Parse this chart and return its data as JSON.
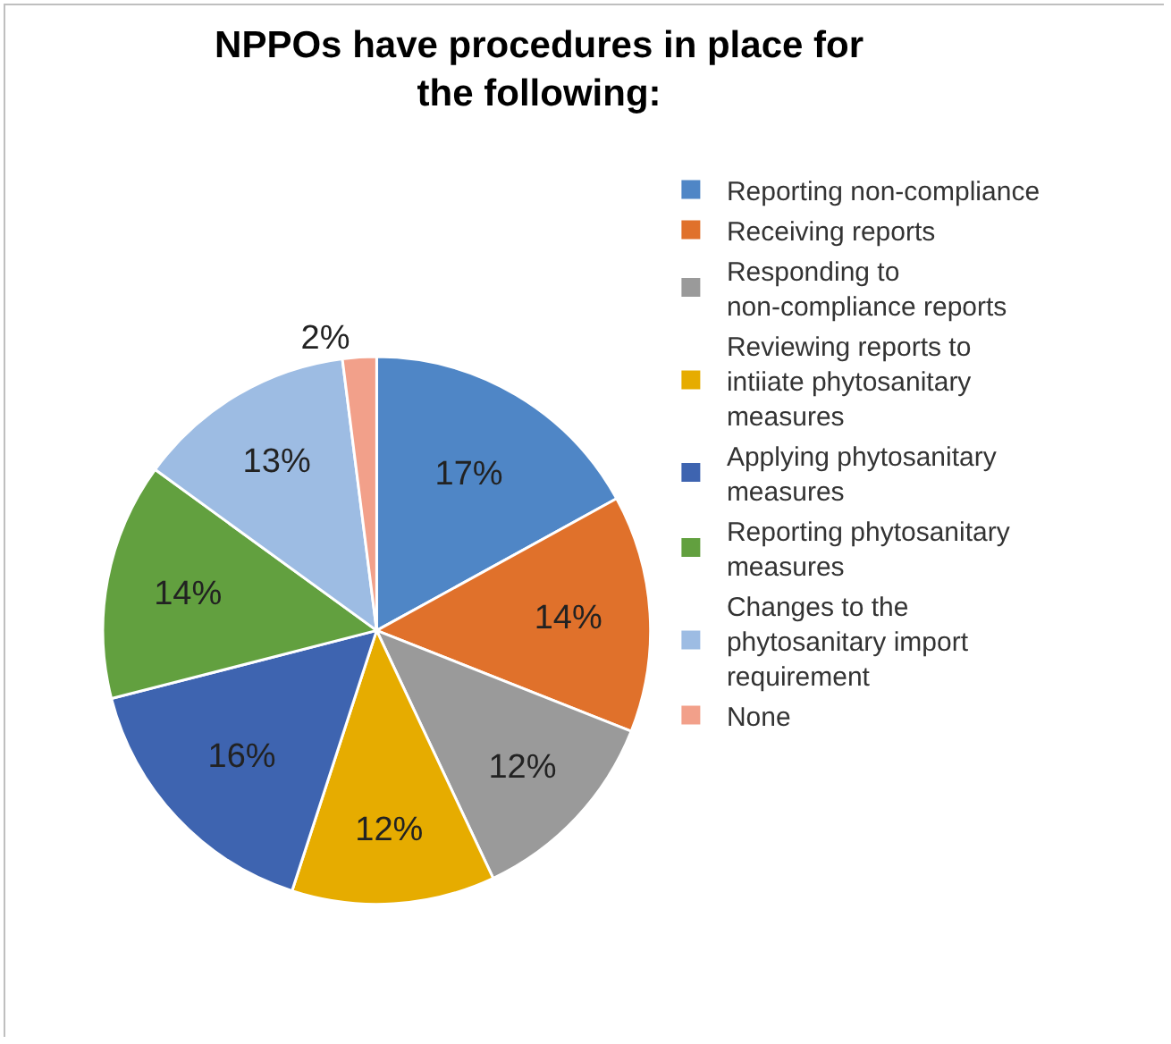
{
  "chart_data": {
    "type": "pie",
    "title": "NPPOs have procedures in place for the following:",
    "categories": [
      "Reporting non-compliance",
      "Receiving reports",
      "Responding to non-compliance reports",
      "Reviewing reports to intiiate phytosanitary measures",
      "Applying phytosanitary measures",
      "Reporting phytosanitary measures",
      "Changes to the phytosanitary import requirement",
      "None"
    ],
    "values": [
      17,
      14,
      12,
      12,
      16,
      14,
      13,
      2
    ],
    "value_labels": [
      "17%",
      "14%",
      "12%",
      "12%",
      "16%",
      "14%",
      "13%",
      "2%"
    ],
    "colors": [
      "#4f86c6",
      "#e0712b",
      "#9a9a9a",
      "#e6ac00",
      "#3e64b0",
      "#62a03f",
      "#9dbce3",
      "#f2a08a"
    ],
    "legend": "right"
  }
}
